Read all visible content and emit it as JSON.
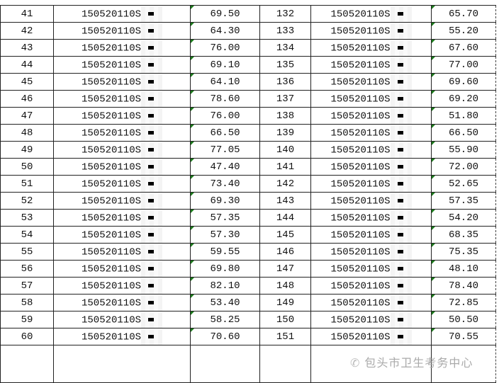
{
  "id_prefix": "150520110S",
  "rows": [
    {
      "n1": "41",
      "s1": "69.50",
      "n2": "132",
      "s2": "65.70"
    },
    {
      "n1": "42",
      "s1": "64.30",
      "n2": "133",
      "s2": "55.20"
    },
    {
      "n1": "43",
      "s1": "76.00",
      "n2": "134",
      "s2": "67.60"
    },
    {
      "n1": "44",
      "s1": "69.10",
      "n2": "135",
      "s2": "77.00"
    },
    {
      "n1": "45",
      "s1": "64.10",
      "n2": "136",
      "s2": "69.60"
    },
    {
      "n1": "46",
      "s1": "78.60",
      "n2": "137",
      "s2": "69.20"
    },
    {
      "n1": "47",
      "s1": "76.00",
      "n2": "138",
      "s2": "51.80"
    },
    {
      "n1": "48",
      "s1": "66.50",
      "n2": "139",
      "s2": "66.50"
    },
    {
      "n1": "49",
      "s1": "77.05",
      "n2": "140",
      "s2": "55.90"
    },
    {
      "n1": "50",
      "s1": "47.40",
      "n2": "141",
      "s2": "72.00"
    },
    {
      "n1": "51",
      "s1": "73.40",
      "n2": "142",
      "s2": "52.65"
    },
    {
      "n1": "52",
      "s1": "69.30",
      "n2": "143",
      "s2": "57.35"
    },
    {
      "n1": "53",
      "s1": "57.35",
      "n2": "144",
      "s2": "54.20"
    },
    {
      "n1": "54",
      "s1": "57.30",
      "n2": "145",
      "s2": "68.35"
    },
    {
      "n1": "55",
      "s1": "59.55",
      "n2": "146",
      "s2": "75.35"
    },
    {
      "n1": "56",
      "s1": "69.80",
      "n2": "147",
      "s2": "48.10"
    },
    {
      "n1": "57",
      "s1": "82.10",
      "n2": "148",
      "s2": "78.40"
    },
    {
      "n1": "58",
      "s1": "53.40",
      "n2": "149",
      "s2": "72.85"
    },
    {
      "n1": "59",
      "s1": "58.25",
      "n2": "150",
      "s2": "50.50"
    },
    {
      "n1": "60",
      "s1": "70.60",
      "n2": "151",
      "s2": "70.55"
    }
  ],
  "watermark": {
    "icon": "wechat-icon",
    "text": "包头市卫生考务中心"
  }
}
